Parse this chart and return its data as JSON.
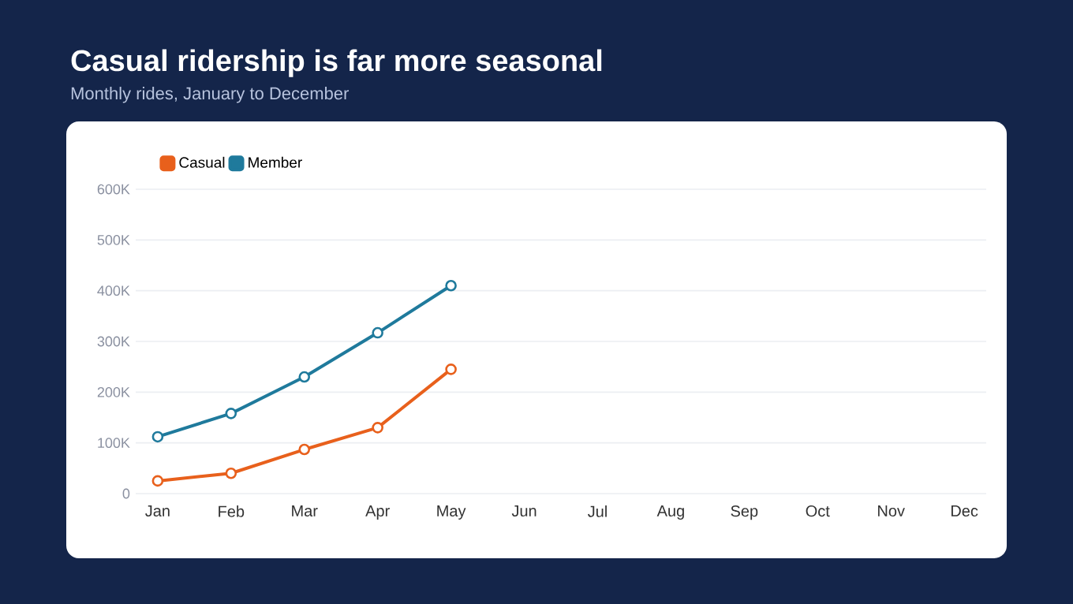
{
  "chart_data": {
    "type": "line",
    "title": "Casual ridership is far more seasonal",
    "subtitle": "Monthly rides, January to December",
    "categories": [
      "Jan",
      "Feb",
      "Mar",
      "Apr",
      "May",
      "Jun",
      "Jul",
      "Aug",
      "Sep",
      "Oct",
      "Nov",
      "Dec"
    ],
    "series": [
      {
        "name": "Casual",
        "color": "#e8601c",
        "values": [
          25000,
          40000,
          87000,
          130000,
          245000,
          null,
          null,
          null,
          null,
          null,
          null,
          null
        ]
      },
      {
        "name": "Member",
        "color": "#1f7a9c",
        "values": [
          112000,
          158000,
          230000,
          317000,
          410000,
          null,
          null,
          null,
          null,
          null,
          null,
          null
        ]
      }
    ],
    "ylim": [
      0,
      600000
    ],
    "yticks": [
      0,
      {
        "value": 100000,
        "label": "100K"
      },
      {
        "value": 200000,
        "label": "200K"
      },
      {
        "value": 300000,
        "label": "300K"
      },
      {
        "value": 400000,
        "label": "400K"
      },
      {
        "value": 500000,
        "label": "500K"
      },
      {
        "value": 600000,
        "label": "600K"
      }
    ],
    "grid": "y",
    "legend": "top left",
    "marker": "circle",
    "line_style": "solid"
  }
}
